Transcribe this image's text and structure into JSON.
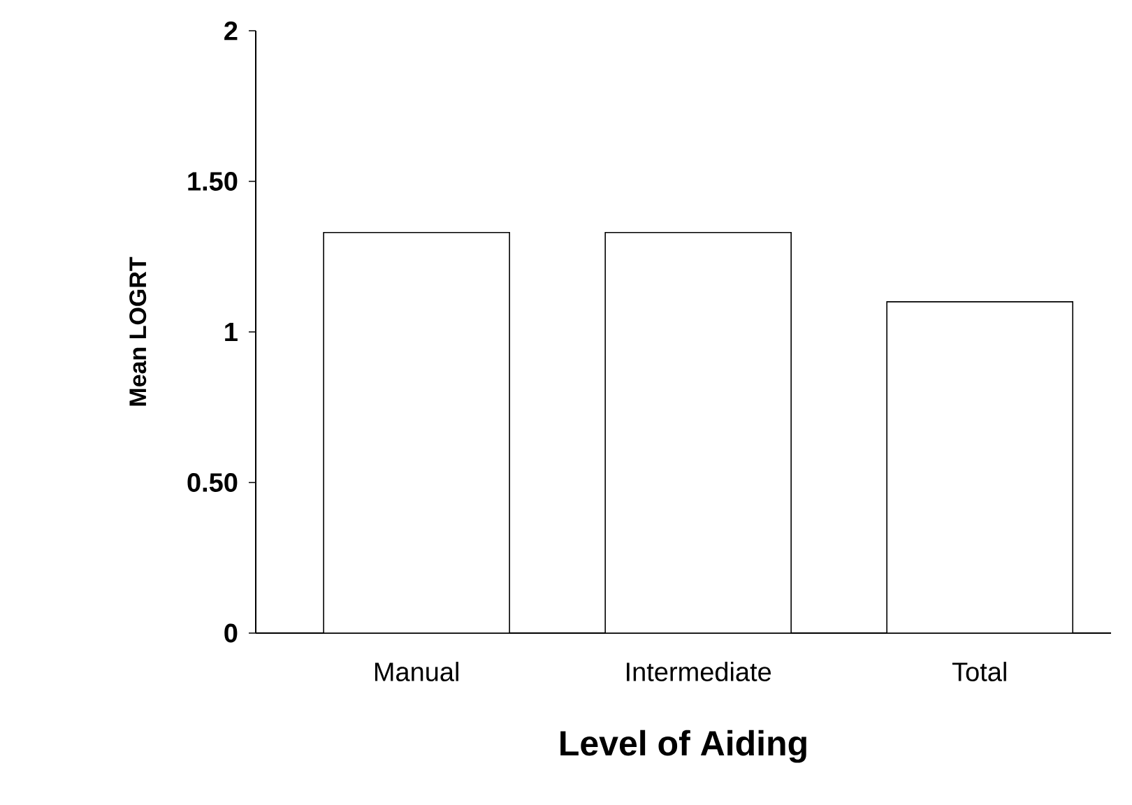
{
  "chart_data": {
    "type": "bar",
    "xlabel": "Level of Aiding",
    "ylabel": "Mean LOGRT",
    "categories": [
      "Manual",
      "Intermediate",
      "Total"
    ],
    "values": [
      1.33,
      1.33,
      1.1
    ],
    "color": "#ffffff",
    "ylim": [
      0,
      2
    ],
    "yticks": [
      0,
      {
        "value": 0.5,
        "label": "0.50"
      },
      1,
      {
        "value": 1.5,
        "label": "1.50"
      },
      2
    ],
    "grid": false
  }
}
